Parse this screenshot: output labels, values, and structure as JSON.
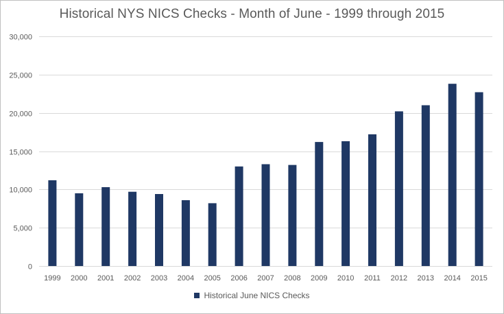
{
  "chart_data": {
    "type": "bar",
    "title": "Historical NYS NICS Checks - Month of June - 1999 through 2015",
    "categories": [
      "1999",
      "2000",
      "2001",
      "2002",
      "2003",
      "2004",
      "2005",
      "2006",
      "2007",
      "2008",
      "2009",
      "2010",
      "2011",
      "2012",
      "2013",
      "2014",
      "2015"
    ],
    "series": [
      {
        "name": "Historical June NICS Checks",
        "values": [
          11200,
          9500,
          10300,
          9700,
          9400,
          8600,
          8200,
          13000,
          13300,
          13200,
          16200,
          16300,
          17200,
          20200,
          21000,
          23800,
          22700
        ]
      }
    ],
    "ylim": [
      0,
      30000
    ],
    "y_ticks": [
      0,
      5000,
      10000,
      15000,
      20000,
      25000,
      30000
    ],
    "y_tick_labels": [
      "0",
      "5,000",
      "10,000",
      "15,000",
      "20,000",
      "25,000",
      "30,000"
    ],
    "xlabel": "",
    "ylabel": "",
    "grid": true,
    "legend_position": "bottom",
    "colors": {
      "bar": "#1f3864",
      "grid": "#d9d9d9",
      "text": "#595959"
    }
  }
}
